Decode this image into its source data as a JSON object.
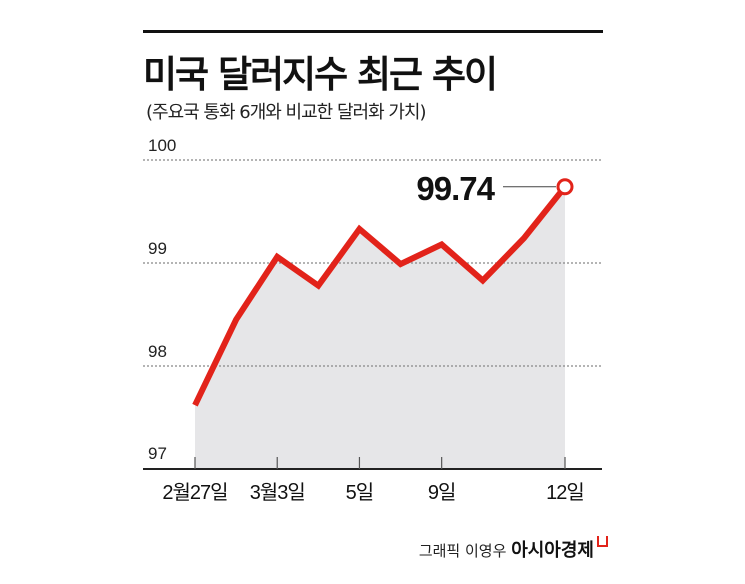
{
  "header": {
    "title": "미국 달러지수 최근 추이",
    "subtitle": "(주요국 통화 6개와 비교한 달러화 가치)"
  },
  "footer": {
    "credit": "그래픽 이영우",
    "brand": "아시아경제"
  },
  "colors": {
    "line": "#e2231a",
    "area": "#e6e6e8",
    "grid": "#888888",
    "text": "#111111"
  },
  "chart_data": {
    "type": "area",
    "title": "미국 달러지수 최근 추이",
    "subtitle": "(주요국 통화 6개와 비교한 달러화 가치)",
    "xlabel": "",
    "ylabel": "",
    "ylim": [
      97,
      100
    ],
    "yticks": [
      "97",
      "98",
      "99",
      "100"
    ],
    "x_tick_labels": [
      "2월27일",
      "3월3일",
      "5일",
      "9일",
      "12일"
    ],
    "x_tick_indices": [
      0,
      2,
      4,
      6,
      9
    ],
    "values": [
      97.62,
      98.45,
      99.06,
      98.78,
      99.33,
      98.99,
      99.18,
      98.83,
      99.24,
      99.74
    ],
    "annotation": {
      "label": "99.74",
      "index": 9
    },
    "grid": true
  }
}
